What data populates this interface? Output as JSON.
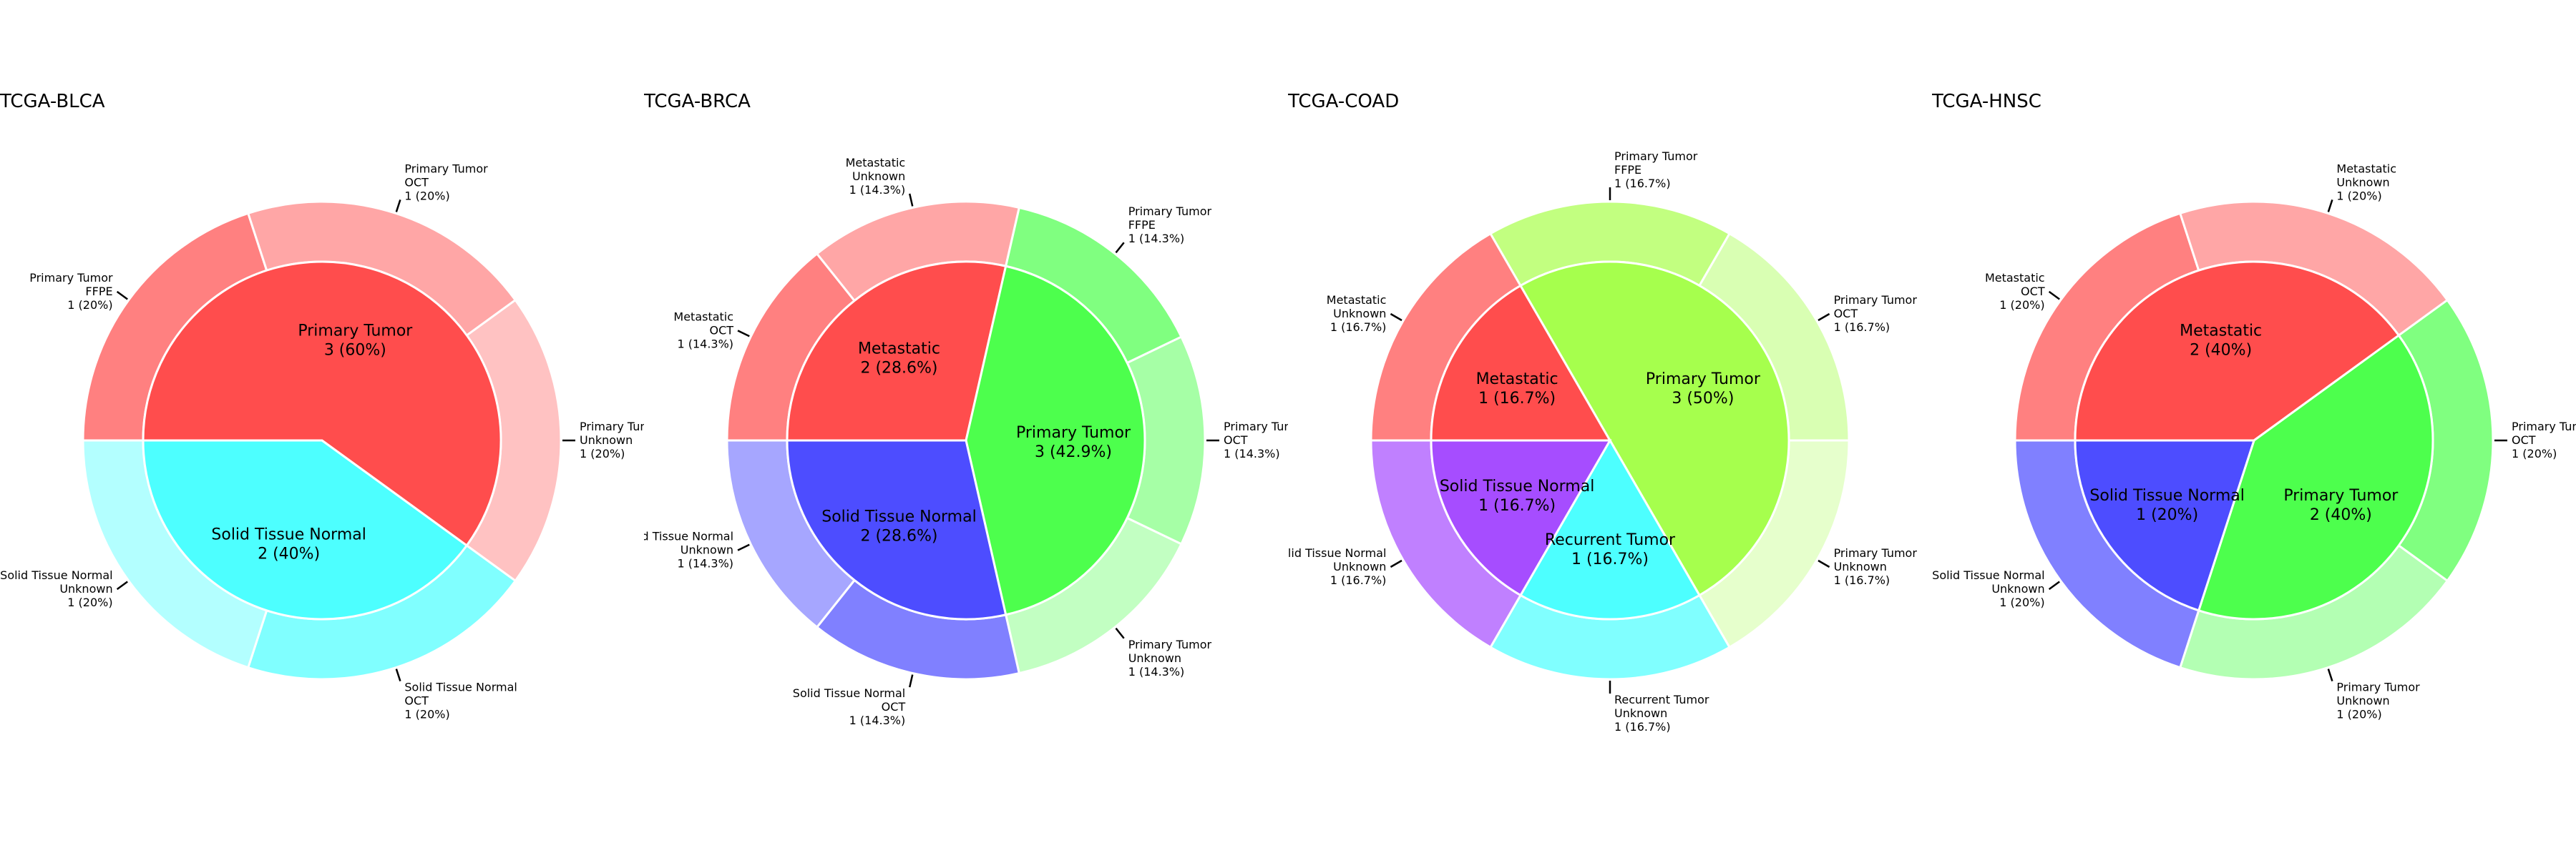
{
  "chart_data": [
    {
      "type": "pie",
      "title": "TCGA-BLCA",
      "inner": [
        {
          "label": "Primary Tumor",
          "count": 3,
          "pct": "60%",
          "color": "#ff4d4d"
        },
        {
          "label": "Solid Tissue Normal",
          "count": 2,
          "pct": "40%",
          "color": "#4dffff"
        }
      ],
      "outer": [
        {
          "lines": [
            "Primary Tumor",
            "FFPE",
            "1 (20%)"
          ],
          "count": 1,
          "color": "#ff8080"
        },
        {
          "lines": [
            "Primary Tumor",
            "OCT",
            "1 (20%)"
          ],
          "count": 1,
          "color": "#ffa6a6"
        },
        {
          "lines": [
            "Primary Tumor",
            "Unknown",
            "1 (20%)"
          ],
          "count": 1,
          "color": "#ffc2c2"
        },
        {
          "lines": [
            "Solid Tissue Normal",
            "OCT",
            "1 (20%)"
          ],
          "count": 1,
          "color": "#80ffff"
        },
        {
          "lines": [
            "Solid Tissue Normal",
            "Unknown",
            "1 (20%)"
          ],
          "count": 1,
          "color": "#b3ffff"
        }
      ]
    },
    {
      "type": "pie",
      "title": "TCGA-BRCA",
      "inner": [
        {
          "label": "Metastatic",
          "count": 2,
          "pct": "28.6%",
          "color": "#ff4d4d"
        },
        {
          "label": "Primary Tumor",
          "count": 3,
          "pct": "42.9%",
          "color": "#4dff4d"
        },
        {
          "label": "Solid Tissue Normal",
          "count": 2,
          "pct": "28.6%",
          "color": "#4d4dff"
        }
      ],
      "outer": [
        {
          "lines": [
            "Metastatic",
            "OCT",
            "1 (14.3%)"
          ],
          "count": 1,
          "color": "#ff8080"
        },
        {
          "lines": [
            "Metastatic",
            "Unknown",
            "1 (14.3%)"
          ],
          "count": 1,
          "color": "#ffa6a6"
        },
        {
          "lines": [
            "Primary Tumor",
            "FFPE",
            "1 (14.3%)"
          ],
          "count": 1,
          "color": "#80ff80"
        },
        {
          "lines": [
            "Primary Tumor",
            "OCT",
            "1 (14.3%)"
          ],
          "count": 1,
          "color": "#a6ffa6"
        },
        {
          "lines": [
            "Primary Tumor",
            "Unknown",
            "1 (14.3%)"
          ],
          "count": 1,
          "color": "#c2ffc2"
        },
        {
          "lines": [
            "Solid Tissue Normal",
            "OCT",
            "1 (14.3%)"
          ],
          "count": 1,
          "color": "#8080ff"
        },
        {
          "lines": [
            "Solid Tissue Normal",
            "Unknown",
            "1 (14.3%)"
          ],
          "count": 1,
          "color": "#a6a6ff"
        }
      ]
    },
    {
      "type": "pie",
      "title": "TCGA-COAD",
      "inner": [
        {
          "label": "Metastatic",
          "count": 1,
          "pct": "16.7%",
          "color": "#ff4d4d"
        },
        {
          "label": "Primary Tumor",
          "count": 3,
          "pct": "50%",
          "color": "#a6ff4d"
        },
        {
          "label": "Recurrent Tumor",
          "count": 1,
          "pct": "16.7%",
          "color": "#4dffff"
        },
        {
          "label": "Solid Tissue Normal",
          "count": 1,
          "pct": "16.7%",
          "color": "#a64dff"
        }
      ],
      "outer": [
        {
          "lines": [
            "Metastatic",
            "Unknown",
            "1 (16.7%)"
          ],
          "count": 1,
          "color": "#ff8080"
        },
        {
          "lines": [
            "Primary Tumor",
            "FFPE",
            "1 (16.7%)"
          ],
          "count": 1,
          "color": "#c2ff80"
        },
        {
          "lines": [
            "Primary Tumor",
            "OCT",
            "1 (16.7%)"
          ],
          "count": 1,
          "color": "#d9ffb3"
        },
        {
          "lines": [
            "Primary Tumor",
            "Unknown",
            "1 (16.7%)"
          ],
          "count": 1,
          "color": "#e6ffcc"
        },
        {
          "lines": [
            "Recurrent Tumor",
            "Unknown",
            "1 (16.7%)"
          ],
          "count": 1,
          "color": "#80ffff"
        },
        {
          "lines": [
            "Solid Tissue Normal",
            "Unknown",
            "1 (16.7%)"
          ],
          "count": 1,
          "color": "#c080ff"
        }
      ]
    },
    {
      "type": "pie",
      "title": "TCGA-HNSC",
      "inner": [
        {
          "label": "Metastatic",
          "count": 2,
          "pct": "40%",
          "color": "#ff4d4d"
        },
        {
          "label": "Primary Tumor",
          "count": 2,
          "pct": "40%",
          "color": "#4dff4d"
        },
        {
          "label": "Solid Tissue Normal",
          "count": 1,
          "pct": "20%",
          "color": "#4d4dff"
        }
      ],
      "outer": [
        {
          "lines": [
            "Metastatic",
            "OCT",
            "1 (20%)"
          ],
          "count": 1,
          "color": "#ff8080"
        },
        {
          "lines": [
            "Metastatic",
            "Unknown",
            "1 (20%)"
          ],
          "count": 1,
          "color": "#ffa6a6"
        },
        {
          "lines": [
            "Primary Tumor",
            "OCT",
            "1 (20%)"
          ],
          "count": 1,
          "color": "#80ff80"
        },
        {
          "lines": [
            "Primary Tumor",
            "Unknown",
            "1 (20%)"
          ],
          "count": 1,
          "color": "#b3ffb3"
        },
        {
          "lines": [
            "Solid Tissue Normal",
            "Unknown",
            "1 (20%)"
          ],
          "count": 1,
          "color": "#8080ff"
        }
      ]
    }
  ]
}
